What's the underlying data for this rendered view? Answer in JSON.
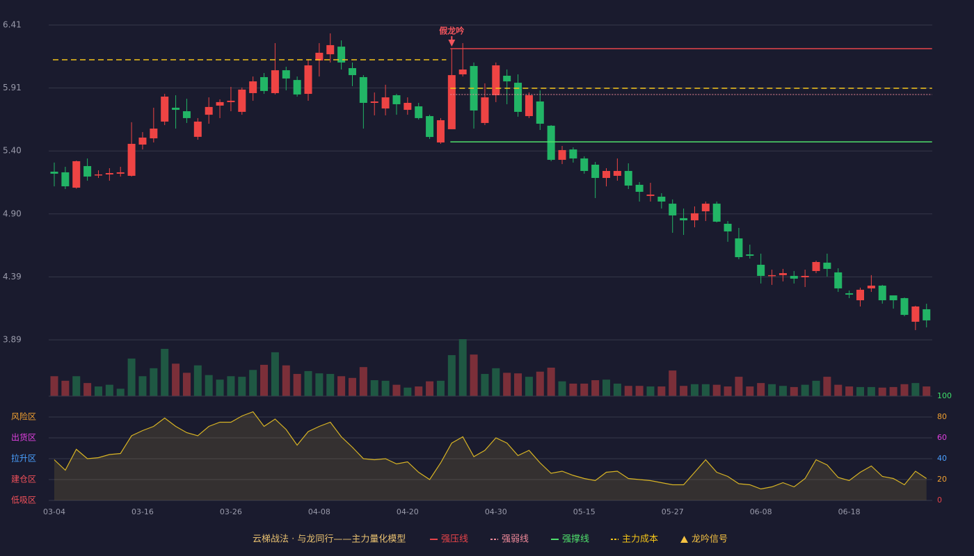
{
  "chart_data": [
    {
      "type": "candlestick",
      "title": "云梯战法 · 与龙同行——主力量化模型",
      "categories": [
        "03-04",
        null,
        null,
        null,
        null,
        null,
        null,
        null,
        "03-16",
        null,
        null,
        null,
        null,
        null,
        null,
        null,
        "03-26",
        null,
        null,
        null,
        null,
        null,
        null,
        null,
        "04-08",
        null,
        null,
        null,
        null,
        null,
        null,
        null,
        "04-20",
        null,
        null,
        null,
        null,
        null,
        null,
        null,
        "04-30",
        null,
        null,
        null,
        null,
        null,
        null,
        null,
        "05-15",
        null,
        null,
        null,
        null,
        null,
        null,
        null,
        "05-27",
        null,
        null,
        null,
        null,
        null,
        null,
        null,
        "06-08",
        null,
        null,
        null,
        null,
        null,
        null,
        null,
        "06-18",
        null,
        null,
        null,
        null,
        null,
        null,
        null
      ],
      "open": [
        5.236,
        5.231,
        5.108,
        5.281,
        5.208,
        5.214,
        5.22,
        5.203,
        5.453,
        5.503,
        5.637,
        5.748,
        5.72,
        5.515,
        5.692,
        5.765,
        5.793,
        5.715,
        5.865,
        5.993,
        5.865,
        6.048,
        5.97,
        5.859,
        6.126,
        6.176,
        6.237,
        6.065,
        5.993,
        5.787,
        5.742,
        5.848,
        5.731,
        5.759,
        5.681,
        5.47,
        5.576,
        6.015,
        6.082,
        5.626,
        5.848,
        6.004,
        5.948,
        5.681,
        5.798,
        5.604,
        5.331,
        5.414,
        5.342,
        5.292,
        5.186,
        5.203,
        5.242,
        5.131,
        5.042,
        5.036,
        4.98,
        4.864,
        4.847,
        4.919,
        4.98,
        4.819,
        4.702,
        4.574,
        4.491,
        4.402,
        4.408,
        4.402,
        4.391,
        4.441,
        4.508,
        4.43,
        4.263,
        4.207,
        4.302,
        4.324,
        4.246,
        4.224,
        4.035,
        4.135
      ],
      "high": [
        5.309,
        5.275,
        5.325,
        5.342,
        5.247,
        5.264,
        5.275,
        5.632,
        5.553,
        5.748,
        5.859,
        5.848,
        5.82,
        5.665,
        5.831,
        5.815,
        5.915,
        5.91,
        5.998,
        6.026,
        6.265,
        6.076,
        5.998,
        6.137,
        6.265,
        6.343,
        6.287,
        6.11,
        6.009,
        5.87,
        5.932,
        5.859,
        5.831,
        5.787,
        5.692,
        5.665,
        6.221,
        6.265,
        6.11,
        5.943,
        6.11,
        6.054,
        6.015,
        5.87,
        5.887,
        5.609,
        5.442,
        5.431,
        5.359,
        5.314,
        5.264,
        5.342,
        5.303,
        5.153,
        5.147,
        5.064,
        5.014,
        4.941,
        4.958,
        4.997,
        4.997,
        4.841,
        4.786,
        4.652,
        4.58,
        4.452,
        4.458,
        4.441,
        4.452,
        4.524,
        4.58,
        4.463,
        4.285,
        4.308,
        4.408,
        4.33,
        4.246,
        4.229,
        4.163,
        4.179
      ],
      "low": [
        5.119,
        5.097,
        5.1,
        5.164,
        5.186,
        5.164,
        5.197,
        5.197,
        5.414,
        5.47,
        5.609,
        5.581,
        5.626,
        5.492,
        5.62,
        5.665,
        5.72,
        5.692,
        5.804,
        5.859,
        5.854,
        5.887,
        5.837,
        5.804,
        5.998,
        6.11,
        6.054,
        5.921,
        5.581,
        5.687,
        5.687,
        5.692,
        5.692,
        5.653,
        5.498,
        5.459,
        5.576,
        5.998,
        5.581,
        5.609,
        5.793,
        5.776,
        5.676,
        5.665,
        5.57,
        5.32,
        5.297,
        5.309,
        5.22,
        5.025,
        5.119,
        5.164,
        5.097,
        4.997,
        4.997,
        4.941,
        4.747,
        4.73,
        4.791,
        4.841,
        4.83,
        4.675,
        4.535,
        4.541,
        4.341,
        4.33,
        4.358,
        4.341,
        4.313,
        4.424,
        4.397,
        4.274,
        4.224,
        4.157,
        4.274,
        4.18,
        4.14,
        4.079,
        3.968,
        3.99
      ],
      "close": [
        5.22,
        5.119,
        5.32,
        5.197,
        5.214,
        5.225,
        5.231,
        5.459,
        5.509,
        5.581,
        5.837,
        5.731,
        5.665,
        5.637,
        5.754,
        5.793,
        5.804,
        5.893,
        5.959,
        5.882,
        6.048,
        5.982,
        5.854,
        6.087,
        6.188,
        6.249,
        6.11,
        6.009,
        5.787,
        5.798,
        5.831,
        5.776,
        5.787,
        5.665,
        5.514,
        5.648,
        6.009,
        6.054,
        5.726,
        5.831,
        6.087,
        5.959,
        5.715,
        5.848,
        5.62,
        5.331,
        5.409,
        5.342,
        5.242,
        5.186,
        5.242,
        5.242,
        5.125,
        5.075,
        5.053,
        4.997,
        4.886,
        4.847,
        4.903,
        4.98,
        4.836,
        4.758,
        4.552,
        4.563,
        4.402,
        4.408,
        4.424,
        4.38,
        4.402,
        4.513,
        4.458,
        4.302,
        4.252,
        4.291,
        4.324,
        4.207,
        4.207,
        4.09,
        4.157,
        4.046
      ],
      "up_color": "#ee4444",
      "down_color": "#22b566",
      "ylim": [
        3.89,
        6.41
      ],
      "yticks": [
        {
          "value": 6.41,
          "label": "6.41"
        },
        {
          "value": 5.906,
          "label": "5.91"
        },
        {
          "value": 5.402,
          "label": "5.40"
        },
        {
          "value": 4.898,
          "label": "4.90"
        },
        {
          "value": 4.394,
          "label": "4.39"
        },
        {
          "value": 3.89,
          "label": "3.89"
        }
      ],
      "grid": true,
      "levels": [
        {
          "name": "强压线",
          "color": "#e8444a",
          "style": "solid",
          "segments": [
            {
              "from": 36,
              "to": 79,
              "value": 6.221
            }
          ]
        },
        {
          "name": "强弱线",
          "color": "#f08a9a",
          "style": "dotted",
          "segments": [
            {
              "from": 36,
              "to": 79,
              "value": 5.854
            }
          ]
        },
        {
          "name": "强撑线",
          "color": "#4fe06c",
          "style": "solid",
          "segments": [
            {
              "from": 36,
              "to": 79,
              "value": 5.475
            }
          ]
        },
        {
          "name": "主力成本",
          "color": "#f5c518",
          "style": "dashed",
          "segments": [
            {
              "from": 0,
              "to": 35,
              "value": 6.132
            },
            {
              "from": 36,
              "to": 79,
              "value": 5.904
            }
          ]
        }
      ],
      "annotation": {
        "text": "假龙吟",
        "index": 36,
        "color": "#f0545c"
      },
      "signal_legend": {
        "name": "龙吟信号",
        "color": "#f5c242"
      }
    },
    {
      "type": "bar",
      "values": [
        35,
        27,
        35,
        23,
        17,
        20,
        13,
        66,
        35,
        49,
        83,
        57,
        41,
        54,
        37,
        29,
        35,
        34,
        46,
        55,
        77,
        54,
        39,
        44,
        40,
        39,
        35,
        32,
        51,
        28,
        27,
        20,
        15,
        17,
        26,
        27,
        72,
        100,
        73,
        39,
        49,
        41,
        40,
        34,
        43,
        50,
        26,
        22,
        22,
        28,
        29,
        22,
        18,
        18,
        17,
        17,
        45,
        18,
        21,
        21,
        20,
        17,
        34,
        17,
        23,
        21,
        18,
        16,
        20,
        27,
        34,
        20,
        17,
        16,
        16,
        15,
        16,
        21,
        23,
        17
      ],
      "ylim": [
        0,
        100
      ],
      "colors": {
        "up": "#1f5843",
        "down": "#7b2f39"
      }
    },
    {
      "type": "area",
      "values": [
        39,
        29,
        49,
        40,
        41,
        44,
        45,
        62,
        67,
        71,
        79,
        71,
        65,
        62,
        71,
        75,
        75,
        81,
        85,
        71,
        78,
        68,
        53,
        66,
        71,
        75,
        61,
        51,
        40,
        39,
        40,
        35,
        37,
        27,
        20,
        36,
        55,
        61,
        42,
        48,
        60,
        55,
        43,
        48,
        36,
        26,
        28,
        24,
        21,
        19,
        27,
        28,
        21,
        20,
        19,
        17,
        15,
        15,
        27,
        39,
        27,
        23,
        16,
        15,
        11,
        13,
        17,
        13,
        21,
        39,
        34,
        22,
        19,
        27,
        33,
        23,
        21,
        15,
        28,
        21
      ],
      "color": "#d8b424",
      "y2lim": [
        0,
        100
      ],
      "y2ticks": [
        0,
        20,
        40,
        60,
        80,
        100
      ],
      "y2tick_colors": [
        "#e8444a",
        "#f0a030",
        "#4aa0ff",
        "#e040e0",
        "#f0a030",
        "#3ee06a"
      ],
      "zones": [
        {
          "label": "风险区",
          "value": 80,
          "color": "#f0a030"
        },
        {
          "label": "出货区",
          "value": 60,
          "color": "#e040e0"
        },
        {
          "label": "拉升区",
          "value": 40,
          "color": "#4aa0ff"
        },
        {
          "label": "建仓区",
          "value": 20,
          "color": "#f0505a"
        },
        {
          "label": "低吸区",
          "value": 0,
          "color": "#f0505a"
        }
      ]
    }
  ]
}
